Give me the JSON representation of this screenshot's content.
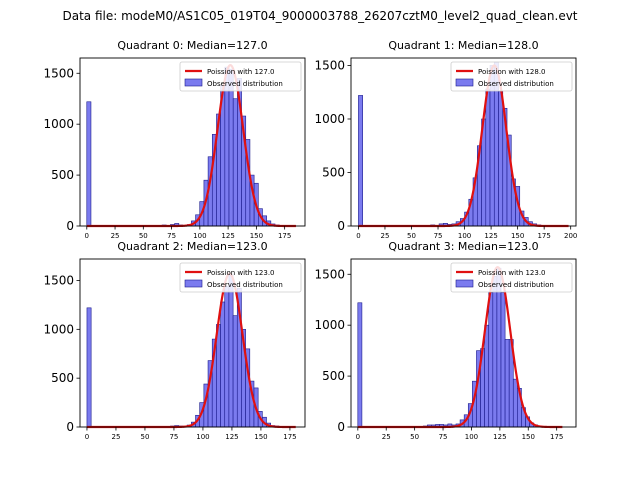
{
  "figure_title": "Data file: modeM0/AS1C05_019T04_9000003788_26207cztM0_level2_quad_clean.evt",
  "colors": {
    "hist_fill": "#7b7bef",
    "hist_edge": "#1a1a8c",
    "fit_line": "#e01010"
  },
  "chart_data": [
    {
      "type": "bar",
      "title": "Quadrant 0: Median=127.0",
      "bin_width": 3.7,
      "bins": [
        {
          "x": 0,
          "y": 1220
        },
        {
          "x": 66.6,
          "y": 10
        },
        {
          "x": 70.3,
          "y": 5
        },
        {
          "x": 74,
          "y": 15
        },
        {
          "x": 77.7,
          "y": 25
        },
        {
          "x": 81.4,
          "y": 10
        },
        {
          "x": 85.1,
          "y": 5
        },
        {
          "x": 88.8,
          "y": 15
        },
        {
          "x": 92.5,
          "y": 50
        },
        {
          "x": 96.2,
          "y": 110
        },
        {
          "x": 99.9,
          "y": 240
        },
        {
          "x": 103.6,
          "y": 450
        },
        {
          "x": 107.3,
          "y": 680
        },
        {
          "x": 111,
          "y": 900
        },
        {
          "x": 114.7,
          "y": 1100
        },
        {
          "x": 118.4,
          "y": 1380
        },
        {
          "x": 122.1,
          "y": 1560
        },
        {
          "x": 125.8,
          "y": 1540
        },
        {
          "x": 129.5,
          "y": 1250
        },
        {
          "x": 133.2,
          "y": 1450
        },
        {
          "x": 136.9,
          "y": 1080
        },
        {
          "x": 140.6,
          "y": 850
        },
        {
          "x": 144.3,
          "y": 500
        },
        {
          "x": 148,
          "y": 420
        },
        {
          "x": 151.7,
          "y": 170
        },
        {
          "x": 155.4,
          "y": 100
        },
        {
          "x": 159.1,
          "y": 50
        },
        {
          "x": 162.8,
          "y": 20
        },
        {
          "x": 166.5,
          "y": 10
        },
        {
          "x": 170.2,
          "y": 5
        }
      ],
      "fit": {
        "label": "Poission with 127.0",
        "mean": 127.0,
        "peak": 1580,
        "x_range": [
          0,
          185
        ]
      },
      "legend": [
        "Poission with 127.0",
        "Observed distribution"
      ],
      "legend_position": "upper right",
      "xlim": [
        -6,
        193
      ],
      "ylim": [
        0,
        1650
      ],
      "xticks": [
        0,
        25,
        50,
        75,
        100,
        125,
        150,
        175
      ],
      "yticks": [
        0,
        500,
        1000,
        1500
      ]
    },
    {
      "type": "bar",
      "title": "Quadrant 1: Median=128.0",
      "bin_width": 4.0,
      "bins": [
        {
          "x": 0,
          "y": 1220
        },
        {
          "x": 64,
          "y": 5
        },
        {
          "x": 68,
          "y": 10
        },
        {
          "x": 72,
          "y": 5
        },
        {
          "x": 76,
          "y": 20
        },
        {
          "x": 80,
          "y": 25
        },
        {
          "x": 84,
          "y": 15
        },
        {
          "x": 88,
          "y": 20
        },
        {
          "x": 92,
          "y": 40
        },
        {
          "x": 96,
          "y": 70
        },
        {
          "x": 100,
          "y": 130
        },
        {
          "x": 104,
          "y": 250
        },
        {
          "x": 108,
          "y": 450
        },
        {
          "x": 112,
          "y": 750
        },
        {
          "x": 116,
          "y": 1000
        },
        {
          "x": 120,
          "y": 1280
        },
        {
          "x": 124,
          "y": 1500
        },
        {
          "x": 128,
          "y": 1530
        },
        {
          "x": 132,
          "y": 1260
        },
        {
          "x": 136,
          "y": 1100
        },
        {
          "x": 140,
          "y": 850
        },
        {
          "x": 144,
          "y": 440
        },
        {
          "x": 148,
          "y": 370
        },
        {
          "x": 152,
          "y": 140
        },
        {
          "x": 156,
          "y": 80
        },
        {
          "x": 160,
          "y": 40
        },
        {
          "x": 164,
          "y": 20
        },
        {
          "x": 168,
          "y": 10
        },
        {
          "x": 172,
          "y": 5
        }
      ],
      "fit": {
        "label": "Poission with 128.0",
        "mean": 128.0,
        "peak": 1500,
        "x_range": [
          0,
          198
        ]
      },
      "legend": [
        "Poission with 128.0",
        "Observed distribution"
      ],
      "legend_position": "upper right",
      "xlim": [
        -7,
        205
      ],
      "ylim": [
        0,
        1570
      ],
      "xticks": [
        0,
        25,
        50,
        75,
        100,
        125,
        150,
        175,
        200
      ],
      "yticks": [
        0,
        500,
        1000,
        1500
      ]
    },
    {
      "type": "bar",
      "title": "Quadrant 2: Median=123.0",
      "bin_width": 3.6,
      "bins": [
        {
          "x": 0,
          "y": 1220
        },
        {
          "x": 64.8,
          "y": 5
        },
        {
          "x": 68.4,
          "y": 5
        },
        {
          "x": 72,
          "y": 10
        },
        {
          "x": 75.6,
          "y": 15
        },
        {
          "x": 79.2,
          "y": 10
        },
        {
          "x": 82.8,
          "y": 5
        },
        {
          "x": 86.4,
          "y": 20
        },
        {
          "x": 90,
          "y": 50
        },
        {
          "x": 93.6,
          "y": 120
        },
        {
          "x": 97.2,
          "y": 250
        },
        {
          "x": 100.8,
          "y": 440
        },
        {
          "x": 104.4,
          "y": 680
        },
        {
          "x": 108,
          "y": 900
        },
        {
          "x": 111.6,
          "y": 1050
        },
        {
          "x": 115.2,
          "y": 1280
        },
        {
          "x": 118.8,
          "y": 1440
        },
        {
          "x": 122.4,
          "y": 1560
        },
        {
          "x": 126,
          "y": 1140
        },
        {
          "x": 129.6,
          "y": 1420
        },
        {
          "x": 133.2,
          "y": 1000
        },
        {
          "x": 136.8,
          "y": 800
        },
        {
          "x": 140.4,
          "y": 470
        },
        {
          "x": 144,
          "y": 400
        },
        {
          "x": 147.6,
          "y": 160
        },
        {
          "x": 151.2,
          "y": 100
        },
        {
          "x": 154.8,
          "y": 40
        },
        {
          "x": 158.4,
          "y": 15
        },
        {
          "x": 162,
          "y": 10
        },
        {
          "x": 165.6,
          "y": 5
        }
      ],
      "fit": {
        "label": "Poission with 123.0",
        "mean": 123.0,
        "peak": 1570,
        "x_range": [
          0,
          180
        ]
      },
      "legend": [
        "Poission with 123.0",
        "Observed distribution"
      ],
      "legend_position": "upper right",
      "xlim": [
        -6,
        188
      ],
      "ylim": [
        0,
        1720
      ],
      "xticks": [
        0,
        25,
        50,
        75,
        100,
        125,
        150,
        175
      ],
      "yticks": [
        0,
        500,
        1000,
        1500
      ]
    },
    {
      "type": "bar",
      "title": "Quadrant 3: Median=123.0",
      "bin_width": 3.6,
      "bins": [
        {
          "x": 0,
          "y": 1220
        },
        {
          "x": 50.4,
          "y": 5
        },
        {
          "x": 54,
          "y": 5
        },
        {
          "x": 57.6,
          "y": 10
        },
        {
          "x": 61.2,
          "y": 20
        },
        {
          "x": 64.8,
          "y": 20
        },
        {
          "x": 68.4,
          "y": 25
        },
        {
          "x": 72,
          "y": 25
        },
        {
          "x": 75.6,
          "y": 20
        },
        {
          "x": 79.2,
          "y": 30
        },
        {
          "x": 82.8,
          "y": 20
        },
        {
          "x": 86.4,
          "y": 30
        },
        {
          "x": 90,
          "y": 70
        },
        {
          "x": 93.6,
          "y": 120
        },
        {
          "x": 97.2,
          "y": 230
        },
        {
          "x": 100.8,
          "y": 450
        },
        {
          "x": 104.4,
          "y": 750
        },
        {
          "x": 108,
          "y": 770
        },
        {
          "x": 111.6,
          "y": 1000
        },
        {
          "x": 115.2,
          "y": 1320
        },
        {
          "x": 118.8,
          "y": 1480
        },
        {
          "x": 122.4,
          "y": 1560
        },
        {
          "x": 126,
          "y": 1320
        },
        {
          "x": 129.6,
          "y": 860
        },
        {
          "x": 133.2,
          "y": 860
        },
        {
          "x": 136.8,
          "y": 470
        },
        {
          "x": 140.4,
          "y": 380
        },
        {
          "x": 144,
          "y": 190
        },
        {
          "x": 147.6,
          "y": 100
        },
        {
          "x": 151.2,
          "y": 40
        },
        {
          "x": 154.8,
          "y": 20
        },
        {
          "x": 158.4,
          "y": 10
        },
        {
          "x": 162,
          "y": 5
        }
      ],
      "fit": {
        "label": "Poission with 123.0",
        "mean": 123.0,
        "peak": 1570,
        "x_range": [
          0,
          180
        ]
      },
      "legend": [
        "Poission with 123.0",
        "Observed distribution"
      ],
      "legend_position": "upper right",
      "xlim": [
        -6,
        192
      ],
      "ylim": [
        0,
        1650
      ],
      "xticks": [
        0,
        25,
        50,
        75,
        100,
        125,
        150,
        175
      ],
      "yticks": [
        0,
        500,
        1000,
        1500
      ]
    }
  ]
}
